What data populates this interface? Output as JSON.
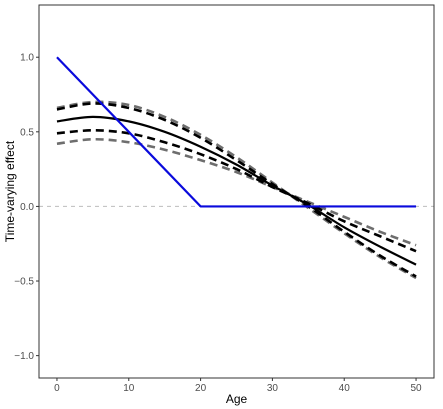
{
  "chart_data": {
    "type": "line",
    "title": "",
    "xlabel": "Age",
    "ylabel": "Time-varying effect",
    "xlim": [
      -2.5,
      52.5
    ],
    "ylim": [
      -1.15,
      1.35
    ],
    "x_ticks": [
      0,
      10,
      20,
      30,
      40,
      50
    ],
    "x_tick_labels": [
      "0",
      "10",
      "20",
      "30",
      "40",
      "50"
    ],
    "y_ticks": [
      -1.0,
      -0.5,
      0.0,
      0.5,
      1.0
    ],
    "y_tick_labels": [
      "−1.0",
      "−0.5",
      "0.0",
      "0.5",
      "1.0"
    ],
    "grid": false,
    "legend": "none",
    "reference_line": {
      "y": 0,
      "style": "dashed",
      "color": "#bdbdbd"
    },
    "x": [
      0,
      5,
      10,
      15,
      20,
      25,
      30,
      35,
      40,
      45,
      50
    ],
    "series": [
      {
        "style": "solid",
        "color": "#0a0adc",
        "x": [
          0,
          20,
          50
        ],
        "values": [
          1.0,
          0.0,
          0.0
        ]
      },
      {
        "style": "solid",
        "color": "#000000",
        "values": [
          0.57,
          0.6,
          0.57,
          0.5,
          0.4,
          0.28,
          0.14,
          0.01,
          -0.14,
          -0.27,
          -0.39
        ]
      },
      {
        "style": "dashed",
        "color": "#000000",
        "values": [
          0.49,
          0.51,
          0.49,
          0.43,
          0.35,
          0.25,
          0.13,
          0.02,
          -0.1,
          -0.2,
          -0.3
        ]
      },
      {
        "style": "dashed",
        "color": "#000000",
        "values": [
          0.65,
          0.69,
          0.66,
          0.58,
          0.46,
          0.31,
          0.15,
          0.0,
          -0.17,
          -0.33,
          -0.47
        ]
      },
      {
        "style": "dashed",
        "color": "#6e6e6e",
        "values": [
          0.42,
          0.45,
          0.43,
          0.38,
          0.31,
          0.23,
          0.13,
          0.03,
          -0.07,
          -0.17,
          -0.26
        ]
      },
      {
        "style": "dashed",
        "color": "#6e6e6e",
        "values": [
          0.66,
          0.7,
          0.68,
          0.6,
          0.48,
          0.33,
          0.16,
          -0.01,
          -0.18,
          -0.34,
          -0.48
        ]
      }
    ]
  }
}
